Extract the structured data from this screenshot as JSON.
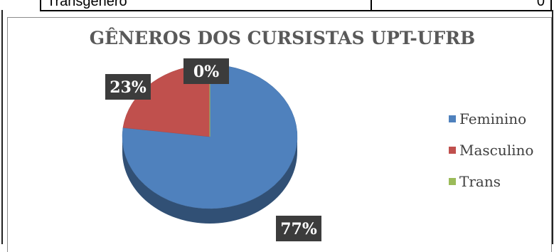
{
  "top_table": {
    "label": "Transgênero",
    "value": "0"
  },
  "chart_data": {
    "type": "pie",
    "title": "GÊNEROS DOS CURSISTAS UPT-UFRB",
    "categories": [
      "Feminino",
      "Masculino",
      "Trans"
    ],
    "values": [
      77,
      23,
      0
    ],
    "data_labels": [
      "77%",
      "23%",
      "0%"
    ],
    "colors": [
      "#4f81bd",
      "#c0504d",
      "#9bbb59"
    ],
    "legend_position": "right",
    "style": "3d"
  }
}
